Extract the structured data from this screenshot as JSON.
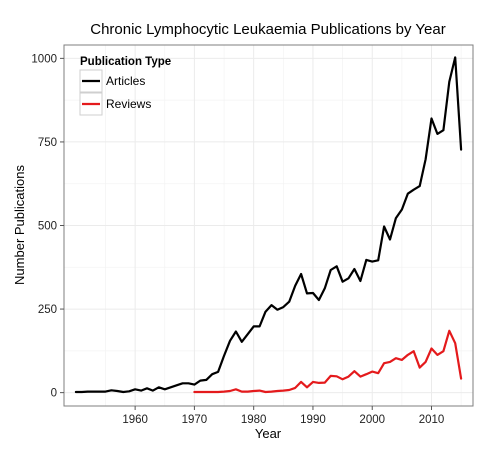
{
  "chart_data": {
    "type": "line",
    "title": "Chronic Lymphocytic Leukaemia Publications by Year",
    "xlabel": "Year",
    "ylabel": "Number Publications",
    "xlim": [
      1948,
      2017
    ],
    "ylim": [
      -40,
      1040
    ],
    "x_ticks": [
      1960,
      1970,
      1980,
      1990,
      2000,
      2010
    ],
    "y_ticks": [
      0,
      250,
      500,
      750,
      1000
    ],
    "grid": true,
    "legend": {
      "title": "Publication Type",
      "position": "top-left"
    },
    "series": [
      {
        "name": "Articles",
        "color": "#000000",
        "x": [
          1950,
          1951,
          1952,
          1953,
          1954,
          1955,
          1956,
          1957,
          1958,
          1959,
          1960,
          1961,
          1962,
          1963,
          1964,
          1965,
          1966,
          1967,
          1968,
          1969,
          1970,
          1971,
          1972,
          1973,
          1974,
          1975,
          1976,
          1977,
          1978,
          1979,
          1980,
          1981,
          1982,
          1983,
          1984,
          1985,
          1986,
          1987,
          1988,
          1989,
          1990,
          1991,
          1992,
          1993,
          1994,
          1995,
          1996,
          1997,
          1998,
          1999,
          2000,
          2001,
          2002,
          2003,
          2004,
          2005,
          2006,
          2007,
          2008,
          2009,
          2010,
          2011,
          2012,
          2013,
          2014,
          2015
        ],
        "values": [
          2,
          2,
          3,
          3,
          3,
          3,
          7,
          5,
          2,
          4,
          10,
          6,
          13,
          6,
          16,
          10,
          16,
          22,
          28,
          28,
          24,
          36,
          38,
          55,
          62,
          110,
          155,
          183,
          152,
          175,
          198,
          198,
          242,
          262,
          248,
          256,
          272,
          320,
          355,
          297,
          298,
          277,
          312,
          367,
          378,
          332,
          342,
          370,
          334,
          397,
          392,
          396,
          497,
          458,
          522,
          548,
          595,
          607,
          618,
          698,
          820,
          774,
          785,
          930,
          1003,
          727
        ]
      },
      {
        "name": "Reviews",
        "color": "#e41a1c",
        "x": [
          1970,
          1971,
          1972,
          1973,
          1974,
          1975,
          1976,
          1977,
          1978,
          1979,
          1980,
          1981,
          1982,
          1983,
          1984,
          1985,
          1986,
          1987,
          1988,
          1989,
          1990,
          1991,
          1992,
          1993,
          1994,
          1995,
          1996,
          1997,
          1998,
          1999,
          2000,
          2001,
          2002,
          2003,
          2004,
          2005,
          2006,
          2007,
          2008,
          2009,
          2010,
          2011,
          2012,
          2013,
          2014,
          2015
        ],
        "values": [
          2,
          2,
          2,
          2,
          2,
          3,
          5,
          10,
          3,
          3,
          5,
          6,
          2,
          3,
          5,
          6,
          8,
          14,
          32,
          16,
          32,
          29,
          30,
          50,
          49,
          40,
          48,
          64,
          48,
          55,
          63,
          58,
          88,
          92,
          103,
          98,
          113,
          124,
          75,
          92,
          132,
          113,
          124,
          185,
          148,
          42
        ]
      }
    ]
  }
}
